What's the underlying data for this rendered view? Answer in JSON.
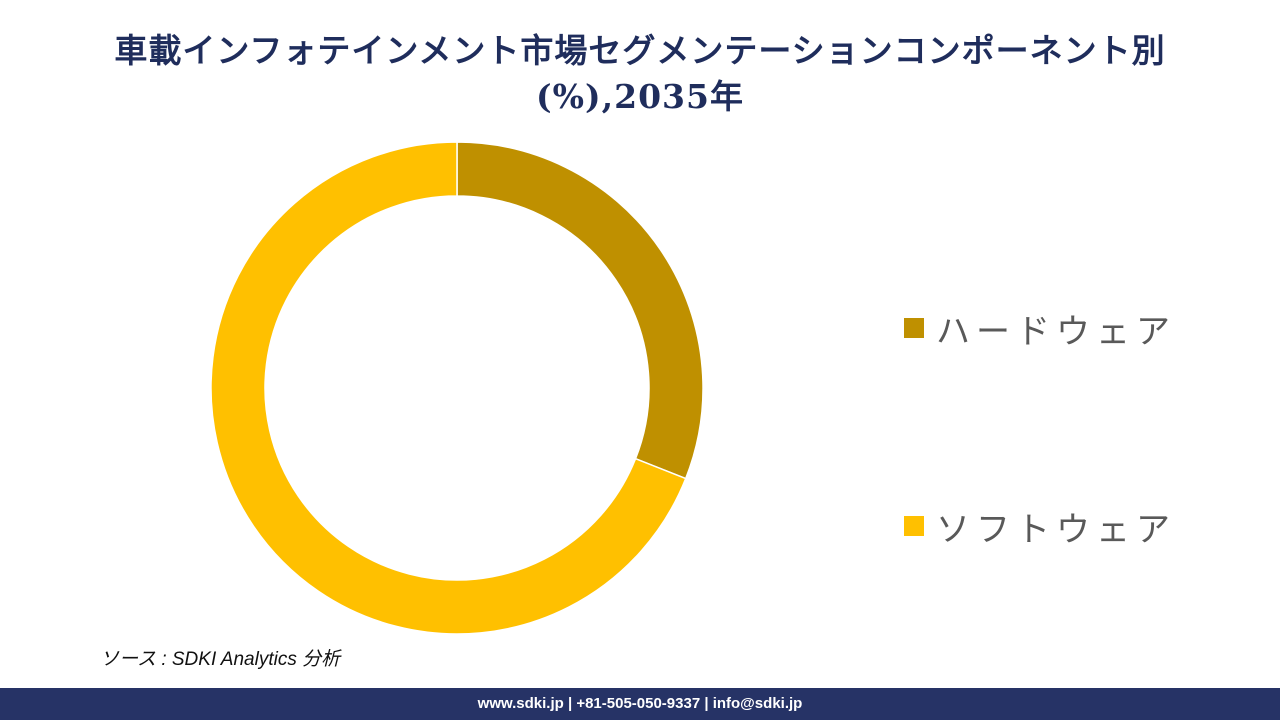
{
  "title": {
    "line1": "車載インフォテインメント市場セグメンテーションコンポーネント別",
    "line2": "(%),2035年"
  },
  "chart_data": {
    "type": "pie",
    "variant": "donut",
    "categories": [
      "ハードウェア",
      "ソフトウェア"
    ],
    "values": [
      31,
      69
    ],
    "colors": [
      "#bf9000",
      "#ffc000"
    ],
    "legend_position": "right"
  },
  "legend": {
    "items": [
      {
        "label": "ハードウェア",
        "color": "#bf9000"
      },
      {
        "label": "ソフトウェア",
        "color": "#ffc000"
      }
    ]
  },
  "source": "ソース : SDKI Analytics 分析",
  "footer": "www.sdki.jp | +81-505-050-9337 | info@sdki.jp"
}
